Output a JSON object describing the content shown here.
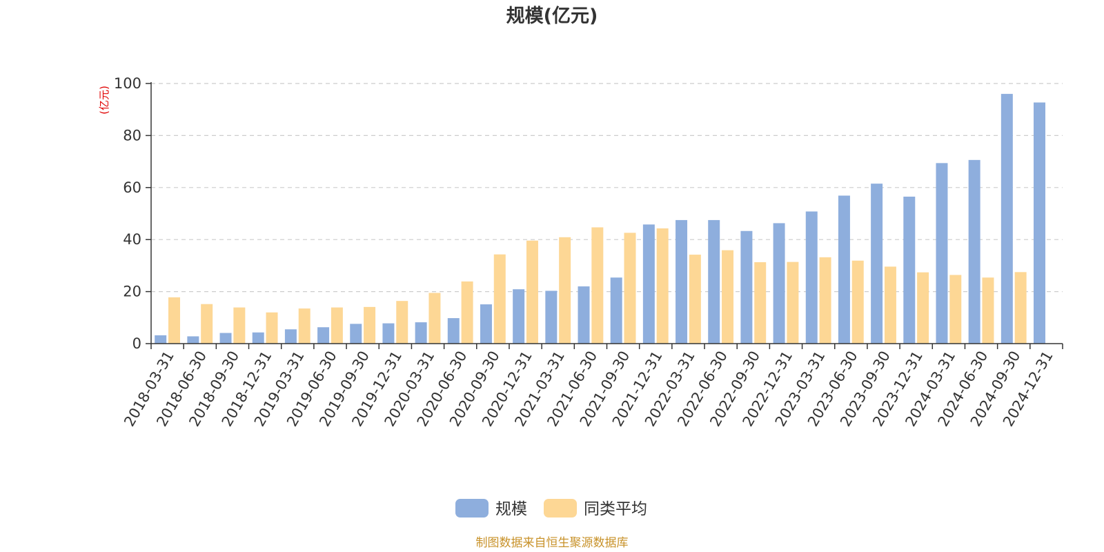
{
  "chart_data": {
    "type": "bar",
    "title": "规模(亿元)",
    "ylabel": "(亿元)",
    "xlabel": "",
    "ylim": [
      0,
      100
    ],
    "yticks": [
      0,
      20,
      40,
      60,
      80,
      100
    ],
    "grid": true,
    "legend_position": "bottom",
    "categories": [
      "2018-03-31",
      "2018-06-30",
      "2018-09-30",
      "2018-12-31",
      "2019-03-31",
      "2019-06-30",
      "2019-09-30",
      "2019-12-31",
      "2020-03-31",
      "2020-06-30",
      "2020-09-30",
      "2020-12-31",
      "2021-03-31",
      "2021-06-30",
      "2021-09-30",
      "2021-12-31",
      "2022-03-31",
      "2022-06-30",
      "2022-09-30",
      "2022-12-31",
      "2023-03-31",
      "2023-06-30",
      "2023-09-30",
      "2023-12-31",
      "2024-03-31",
      "2024-06-30",
      "2024-09-30",
      "2024-12-31"
    ],
    "series": [
      {
        "name": "规模",
        "color": "#8eaedd",
        "values": [
          3.2,
          2.8,
          4.1,
          4.3,
          5.5,
          6.3,
          7.6,
          7.8,
          8.2,
          9.8,
          15.1,
          20.9,
          20.3,
          22.0,
          25.4,
          45.8,
          47.5,
          47.5,
          43.3,
          46.3,
          50.8,
          56.9,
          61.5,
          56.5,
          69.4,
          70.6,
          96.0,
          92.7
        ]
      },
      {
        "name": "同类平均",
        "color": "#fdd795",
        "values": [
          17.8,
          15.2,
          13.9,
          12.0,
          13.5,
          13.9,
          14.1,
          16.4,
          19.5,
          23.9,
          34.3,
          39.6,
          40.9,
          44.7,
          42.6,
          44.3,
          34.2,
          35.9,
          31.3,
          31.4,
          33.2,
          31.9,
          29.6,
          27.4,
          26.4,
          25.4,
          27.5,
          null
        ]
      }
    ]
  },
  "source_note": "制图数据来自恒生聚源数据库"
}
